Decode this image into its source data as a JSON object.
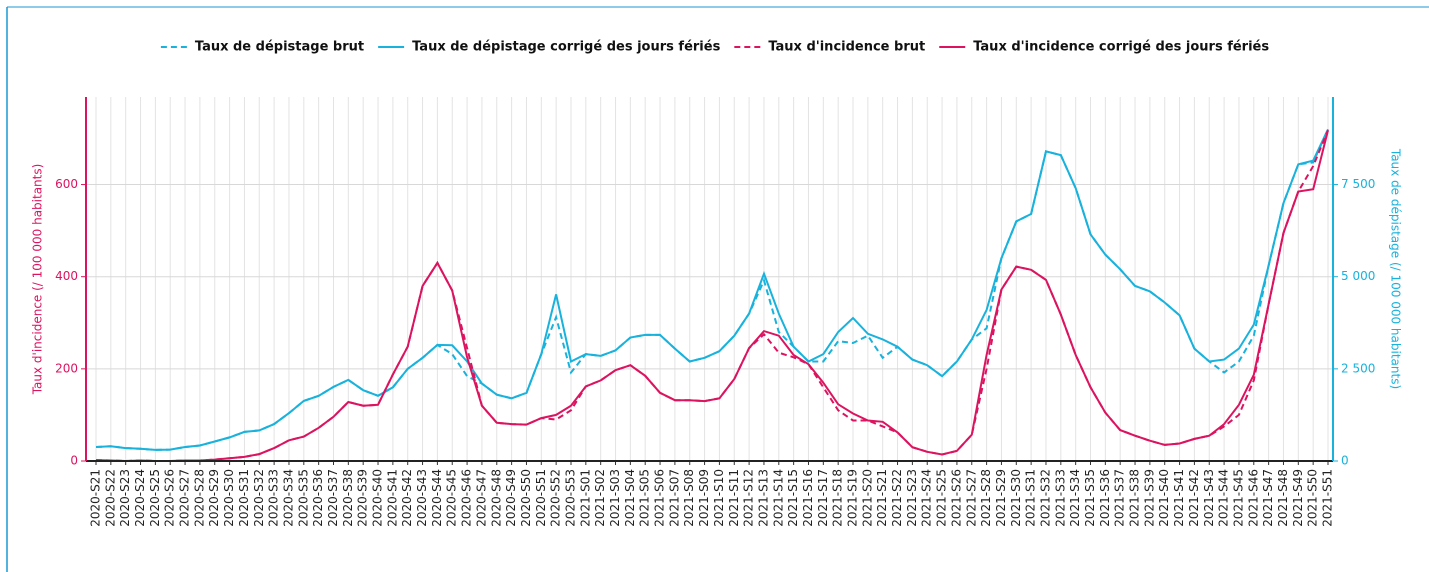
{
  "chart_data": {
    "type": "line",
    "categories": [
      "2020-S21",
      "2020-S22",
      "2020-S23",
      "2020-S24",
      "2020-S25",
      "2020-S26",
      "2020-S27",
      "2020-S28",
      "2020-S29",
      "2020-S30",
      "2020-S31",
      "2020-S32",
      "2020-S33",
      "2020-S34",
      "2020-S35",
      "2020-S36",
      "2020-S37",
      "2020-S38",
      "2020-S39",
      "2020-S40",
      "2020-S41",
      "2020-S42",
      "2020-S43",
      "2020-S44",
      "2020-S45",
      "2020-S46",
      "2020-S47",
      "2020-S48",
      "2020-S49",
      "2020-S50",
      "2020-S51",
      "2020-S52",
      "2020-S53",
      "2021-S01",
      "2021-S02",
      "2021-S03",
      "2021-S04",
      "2021-S05",
      "2021-S06",
      "2021-S07",
      "2021-S08",
      "2021-S09",
      "2021-S10",
      "2021-S11",
      "2021-S12",
      "2021-S13",
      "2021-S14",
      "2021-S15",
      "2021-S16",
      "2021-S17",
      "2021-S18",
      "2021-S19",
      "2021-S20",
      "2021-S21",
      "2021-S22",
      "2021-S23",
      "2021-S24",
      "2021-S25",
      "2021-S26",
      "2021-S27",
      "2021-S28",
      "2021-S29",
      "2021-S30",
      "2021-S31",
      "2021-S32",
      "2021-S33",
      "2021-S34",
      "2021-S35",
      "2021-S36",
      "2021-S37",
      "2021-S38",
      "2021-S39",
      "2021-S40",
      "2021-S41",
      "2021-S42",
      "2021-S43",
      "2021-S44",
      "2021-S45",
      "2021-S46",
      "2021-S47",
      "2021-S48",
      "2021-S49",
      "2021-S50",
      "2021-S51"
    ],
    "series": [
      {
        "name": "Taux de dépistage brut",
        "color": "#18b2dc",
        "linestyle": "dashed",
        "axis": "y2",
        "values": [
          380,
          400,
          350,
          330,
          300,
          310,
          380,
          420,
          530,
          640,
          790,
          830,
          1000,
          1300,
          1630,
          1770,
          2010,
          2200,
          1920,
          1770,
          2000,
          2500,
          2800,
          3150,
          2900,
          2300,
          2100,
          1800,
          1700,
          1850,
          2900,
          3900,
          2400,
          2900,
          2850,
          3000,
          3350,
          3420,
          3420,
          3050,
          2700,
          2800,
          2980,
          3400,
          4000,
          4900,
          3500,
          3100,
          2700,
          2700,
          3250,
          3200,
          3400,
          2800,
          3100,
          2750,
          2600,
          2300,
          2700,
          3300,
          3600,
          5500,
          6500,
          6700,
          8400,
          8300,
          7400,
          6150,
          5600,
          5200,
          4750,
          4600,
          4300,
          3950,
          3050,
          2700,
          2400,
          2700,
          3400,
          5300,
          7000,
          8050,
          8100,
          9000
        ]
      },
      {
        "name": "Taux de dépistage corrigé des jours fériés",
        "color": "#18b2dc",
        "linestyle": "solid",
        "axis": "y2",
        "values": [
          380,
          400,
          350,
          330,
          300,
          310,
          380,
          420,
          530,
          640,
          790,
          830,
          1000,
          1300,
          1630,
          1770,
          2010,
          2200,
          1920,
          1770,
          2000,
          2500,
          2800,
          3150,
          3140,
          2700,
          2100,
          1800,
          1700,
          1850,
          2900,
          4520,
          2700,
          2900,
          2850,
          3000,
          3350,
          3420,
          3420,
          3050,
          2700,
          2800,
          2980,
          3400,
          4000,
          5080,
          4000,
          3100,
          2700,
          2900,
          3500,
          3880,
          3450,
          3300,
          3100,
          2750,
          2600,
          2300,
          2700,
          3300,
          4100,
          5500,
          6500,
          6700,
          8400,
          8300,
          7400,
          6150,
          5600,
          5200,
          4750,
          4600,
          4300,
          3950,
          3050,
          2700,
          2750,
          3050,
          3700,
          5300,
          7000,
          8050,
          8150,
          9000
        ]
      },
      {
        "name": "Taux d'incidence brut",
        "color": "#dc1460",
        "linestyle": "dashed",
        "values": [
          2,
          1,
          0,
          1,
          0,
          0,
          1,
          1,
          3,
          6,
          9,
          15,
          28,
          45,
          53,
          72,
          96,
          128,
          120,
          122,
          188,
          248,
          380,
          430,
          370,
          245,
          120,
          83,
          80,
          79,
          93,
          90,
          110,
          162,
          175,
          197,
          208,
          185,
          148,
          132,
          132,
          130,
          136,
          178,
          245,
          275,
          235,
          225,
          210,
          160,
          110,
          88,
          88,
          75,
          62,
          30,
          20,
          14,
          22,
          57,
          200,
          372,
          422,
          415,
          393,
          318,
          230,
          160,
          105,
          67,
          55,
          44,
          35,
          38,
          48,
          55,
          75,
          100,
          175,
          340,
          495,
          585,
          640,
          718
        ]
      },
      {
        "name": "Taux d'incidence corrigé des jours fériés",
        "color": "#dc1460",
        "linestyle": "solid",
        "values": [
          2,
          1,
          0,
          1,
          0,
          0,
          1,
          1,
          3,
          6,
          9,
          15,
          28,
          45,
          53,
          72,
          96,
          128,
          120,
          122,
          188,
          248,
          380,
          430,
          370,
          225,
          120,
          83,
          80,
          79,
          93,
          100,
          120,
          162,
          175,
          197,
          208,
          185,
          148,
          132,
          132,
          130,
          136,
          178,
          245,
          282,
          272,
          230,
          210,
          170,
          123,
          103,
          88,
          85,
          62,
          30,
          20,
          14,
          22,
          57,
          230,
          372,
          422,
          415,
          393,
          318,
          230,
          160,
          105,
          67,
          55,
          44,
          35,
          38,
          48,
          55,
          80,
          122,
          187,
          340,
          495,
          585,
          590,
          718
        ]
      }
    ],
    "ylabel": "Taux d'incidence (/ 100 000 habitants)",
    "y2label": "Taux de dépistage (/ 100 000 habitants)",
    "ylim": [
      0,
      790
    ],
    "yticks": [
      0,
      200,
      400,
      600
    ],
    "y2lim": [
      0,
      9875
    ],
    "y2ticks": [
      0,
      {
        "value": 2500,
        "label": "2 500"
      },
      {
        "value": 5000,
        "label": "5 000"
      },
      {
        "value": 7500,
        "label": "7 500"
      }
    ],
    "grid": true,
    "legend": "top"
  }
}
